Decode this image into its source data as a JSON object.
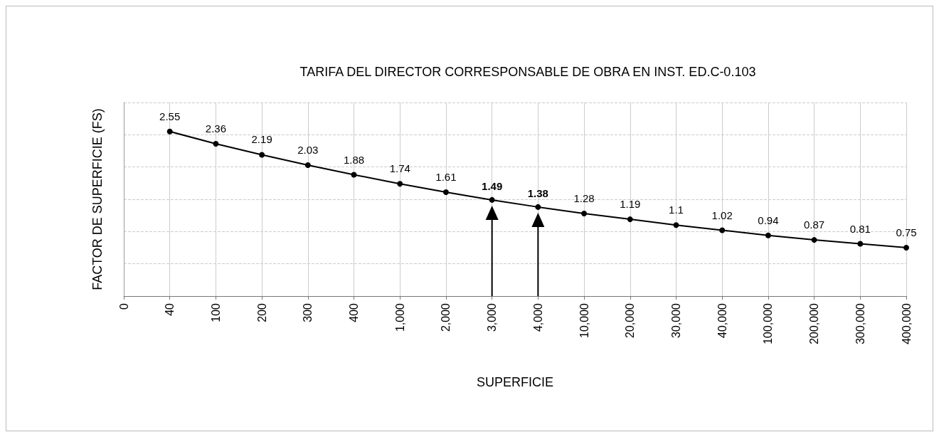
{
  "chart_data": {
    "type": "line",
    "title": "TARIFA DEL DIRECTOR CORRESPONSABLE DE OBRA EN INST. ED.C-0.103",
    "xlabel": "SUPERFICIE",
    "ylabel": "FACTOR DE SUPERFICIE (FS)",
    "categories": [
      "0",
      "40",
      "100",
      "200",
      "300",
      "400",
      "1,000",
      "2,000",
      "3,000",
      "4,000",
      "10,000",
      "20,000",
      "30,000",
      "40,000",
      "100,000",
      "200,000",
      "300,000",
      "400,000"
    ],
    "series": [
      {
        "color": "#000000",
        "values": [
          null,
          2.55,
          2.36,
          2.19,
          2.03,
          1.88,
          1.74,
          1.61,
          1.49,
          1.38,
          1.28,
          1.19,
          1.1,
          1.02,
          0.94,
          0.87,
          0.81,
          0.75
        ],
        "value_labels": [
          null,
          "2.55",
          "2.36",
          "2.19",
          "2.03",
          "1.88",
          "1.74",
          "1.61",
          null,
          null,
          "1.28",
          "1.19",
          "1.1",
          "1.02",
          "0.94",
          "0.87",
          "0.81",
          "0.75"
        ]
      }
    ],
    "annotations": [
      {
        "text": "1.49",
        "x": "3,000",
        "y": 1.49
      },
      {
        "text": "1.38",
        "x": "4,000",
        "y": 1.38
      }
    ],
    "ylim": [
      0,
      3
    ],
    "yticks": [
      {
        "value": 0,
        "label": null
      },
      {
        "value": 0.5,
        "label": null
      },
      {
        "value": 1,
        "label": null
      },
      {
        "value": 1.5,
        "label": null
      },
      {
        "value": 2,
        "label": null
      },
      {
        "value": 2.5,
        "label": null
      },
      {
        "value": 3,
        "label": null
      }
    ],
    "tick_labels": "x",
    "grid": true,
    "marker": "circle",
    "line_style": "solid"
  }
}
